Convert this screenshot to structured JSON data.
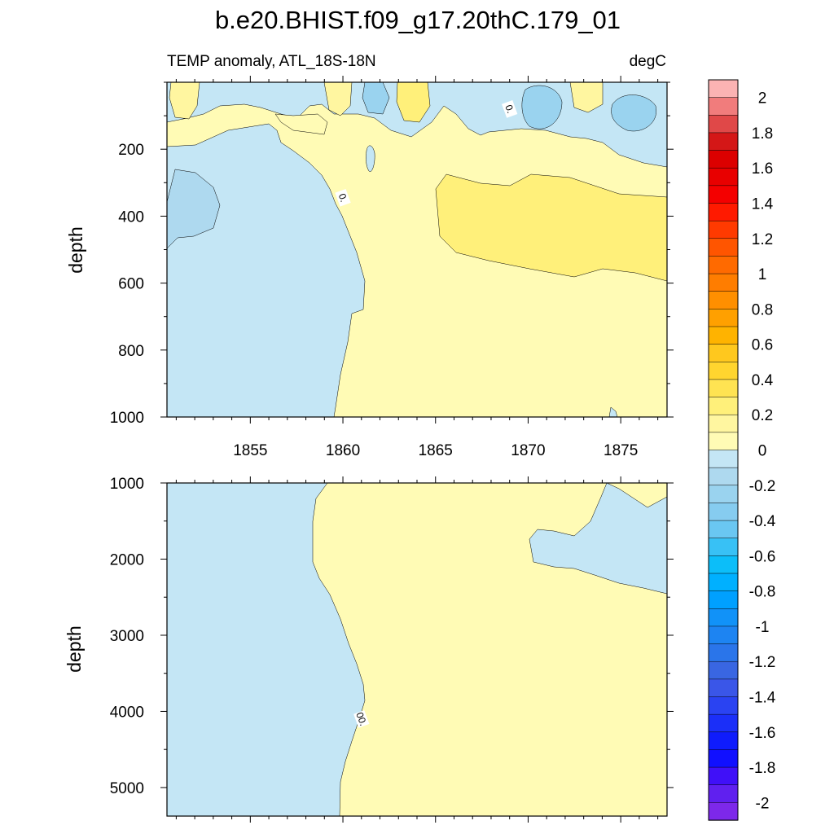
{
  "title": "b.e20.BHIST.f09_g17.20thC.179_01",
  "chart_data": {
    "type": "contour",
    "title": "b.e20.BHIST.f09_g17.20thC.179_01",
    "left_subtitle": "TEMP anomaly, ATL_18S-18N",
    "right_subtitle": "degC",
    "panels": [
      {
        "name": "upper",
        "ylabel": "depth",
        "xlim": [
          1850.5,
          1877.5
        ],
        "ylim": [
          1000,
          0
        ],
        "y_tick_values": [
          200,
          400,
          600,
          800,
          1000
        ],
        "y_tick_labels": [
          "200",
          "400",
          "600",
          "800",
          "1000"
        ],
        "x_tick_values": [
          1855,
          1860,
          1865,
          1870,
          1875
        ],
        "x_tick_labels": [
          "1855",
          "1860",
          "1865",
          "1870",
          "1875"
        ],
        "contour_labels": [
          {
            "text": "0.",
            "x": 1869.0,
            "y": 80
          },
          {
            "text": "0.",
            "x": 1860.0,
            "y": 345
          }
        ]
      },
      {
        "name": "lower",
        "ylabel": "depth",
        "xlim": [
          1850.5,
          1877.5
        ],
        "ylim": [
          5375,
          1000
        ],
        "y_tick_values": [
          1000,
          2000,
          3000,
          4000,
          5000
        ],
        "y_tick_labels": [
          "1000",
          "2000",
          "3000",
          "4000",
          "5000"
        ],
        "x_tick_values": [
          1855,
          1860,
          1865,
          1870,
          1875
        ],
        "x_tick_labels": [],
        "contour_labels": [
          {
            "text": "00.",
            "x": 1861.0,
            "y": 4100
          }
        ]
      }
    ],
    "colorbar": {
      "labels": [
        "2",
        "1.8",
        "1.6",
        "1.4",
        "1.2",
        "1",
        "0.8",
        "0.6",
        "0.4",
        "0.2",
        "0",
        "-0.2",
        "-0.4",
        "-0.6",
        "-0.8",
        "-1",
        "-1.2",
        "-1.4",
        "-1.6",
        "-1.8",
        "-2"
      ],
      "colors": [
        "#fbb3b3",
        "#f17c7c",
        "#e04848",
        "#d41717",
        "#dc0000",
        "#e80000",
        "#f40000",
        "#ff1a00",
        "#ff3a00",
        "#ff5500",
        "#ff6a00",
        "#ff7d00",
        "#ff8f00",
        "#ffa000",
        "#ffb300",
        "#ffc81e",
        "#ffd52f",
        "#ffe352",
        "#fff07a",
        "#fff6a0",
        "#fffbb5",
        "#c4e6f5",
        "#aed9ef",
        "#9ad3ef",
        "#86ccf0",
        "#6ac7f2",
        "#38c1f5",
        "#0cbef9",
        "#00b0ff",
        "#00a0ff",
        "#1192f8",
        "#1d84f2",
        "#2a75ea",
        "#3966e2",
        "#3a56e8",
        "#2a43f2",
        "#1b2ff8",
        "#0f1cfc",
        "#1110ff",
        "#4010f8",
        "#6020ef",
        "#7d28ea"
      ]
    },
    "fill_colors": {
      "negative_light": "#c4e6f5",
      "negative_mid": "#aed9ef",
      "negative_dark": "#9ad3ef",
      "positive_light": "#fffbb5",
      "positive_mid": "#fff6a0",
      "positive_dark": "#fff07a",
      "positive_strong": "#ffe352"
    }
  }
}
